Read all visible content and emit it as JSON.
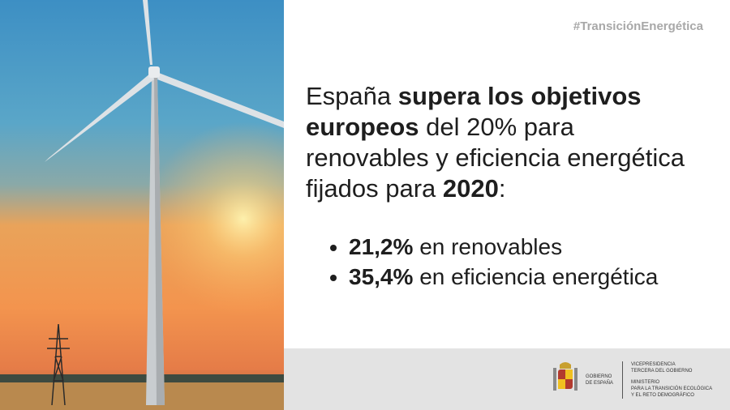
{
  "hashtag": "#TransiciónEnergética",
  "headline": [
    {
      "text": "España",
      "bold": false
    },
    {
      "text": "supera los objetivos europeos",
      "bold": true
    },
    {
      "text": "del 20% para renovables y eficiencia energética fijados para",
      "bold": false
    },
    {
      "text": "2020",
      "bold": true
    },
    {
      "text": ":",
      "bold": false
    }
  ],
  "bullets": [
    {
      "value": "21,2%",
      "text": "en renovables"
    },
    {
      "value": "35,4%",
      "text": "en eficiencia energética"
    }
  ],
  "footer": {
    "gobierno": [
      "GOBIERNO",
      "DE ESPAÑA"
    ],
    "vicepresidencia": [
      "VICEPRESIDENCIA",
      "TERCERA DEL GOBIERNO"
    ],
    "ministerio": [
      "MINISTERIO",
      "PARA LA TRANSICIÓN ECOLÓGICA",
      "Y EL RETO DEMOGRÁFICO"
    ]
  }
}
